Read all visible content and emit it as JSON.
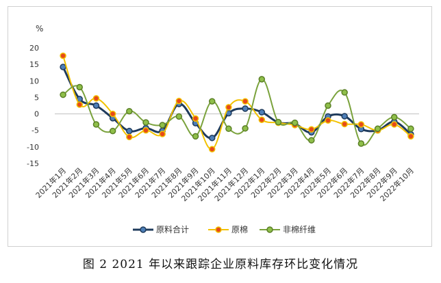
{
  "chart_data": {
    "type": "line",
    "title": "",
    "unit_label": "%",
    "xlabel": "",
    "ylabel": "%",
    "ylim": [
      -15,
      20
    ],
    "yticks": [
      20,
      15,
      10,
      5,
      0,
      -5,
      -10,
      -15
    ],
    "grid": false,
    "legend": "bottom-center",
    "categories": [
      "2021年1月",
      "2021年2月",
      "2021年3月",
      "2021年4月",
      "2021年5月",
      "2021年6月",
      "2021年7月",
      "2021年8月",
      "2021年9月",
      "2021年10月",
      "2021年11月",
      "2021年12月",
      "2022年1月",
      "2022年2月",
      "2022年3月",
      "2022年4月",
      "2022年5月",
      "2022年6月",
      "2022年7月",
      "2022年8月",
      "2022年9月",
      "2022年10月"
    ],
    "series": [
      {
        "name": "原料合计",
        "line_color": "#1f3b5c",
        "marker_color": "#4e7fb8",
        "marker_edge": "#1f3b5c",
        "values": [
          14.2,
          4.5,
          2.5,
          -1.3,
          -5.2,
          -4.3,
          -5.1,
          3.0,
          -2.8,
          -7.3,
          0.2,
          1.6,
          0.5,
          -2.6,
          -3.0,
          -5.6,
          -0.8,
          -0.7,
          -4.6,
          -5.0,
          -2.4,
          -6.2
        ]
      },
      {
        "name": "原棉",
        "line_color": "#f2c200",
        "marker_color": "#e64a19",
        "marker_edge": "#f2c200",
        "values": [
          17.6,
          2.8,
          4.7,
          0.0,
          -7.0,
          -5.0,
          -6.1,
          3.9,
          -1.4,
          -10.7,
          2.0,
          3.8,
          -1.8,
          -2.7,
          -3.4,
          -4.7,
          -2.0,
          -3.1,
          -3.2,
          -5.0,
          -3.2,
          -6.8
        ]
      },
      {
        "name": "非棉纤维",
        "line_color": "#7aa23c",
        "marker_color": "#8fbf4a",
        "marker_edge": "#5a7f26",
        "values": [
          5.8,
          8.1,
          -3.2,
          -5.2,
          0.8,
          -2.6,
          -3.4,
          -0.8,
          -6.8,
          3.8,
          -4.5,
          -4.4,
          10.5,
          -2.5,
          -2.7,
          -8.0,
          2.5,
          6.5,
          -9.0,
          -4.5,
          -1.0,
          -4.5
        ]
      }
    ]
  },
  "caption": "图 2   2021 年以来跟踪企业原料库存环比变化情况"
}
